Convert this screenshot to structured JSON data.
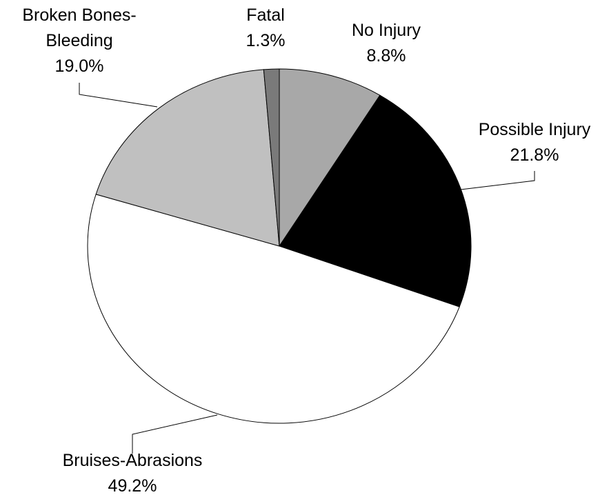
{
  "chart_data": {
    "type": "pie",
    "categories": [
      "No Injury",
      "Possible Injury",
      "Bruises-Abrasions",
      "Broken Bones-Bleeding",
      "Fatal"
    ],
    "values": [
      8.8,
      21.8,
      49.2,
      19.0,
      1.3
    ],
    "value_labels": [
      "8.8%",
      "21.8%",
      "49.2%",
      "19.0%",
      "1.3%"
    ],
    "colors": [
      "#a8a8a8",
      "#000000",
      "#ffffff",
      "#c0c0c0",
      "#7a7a7a"
    ]
  }
}
